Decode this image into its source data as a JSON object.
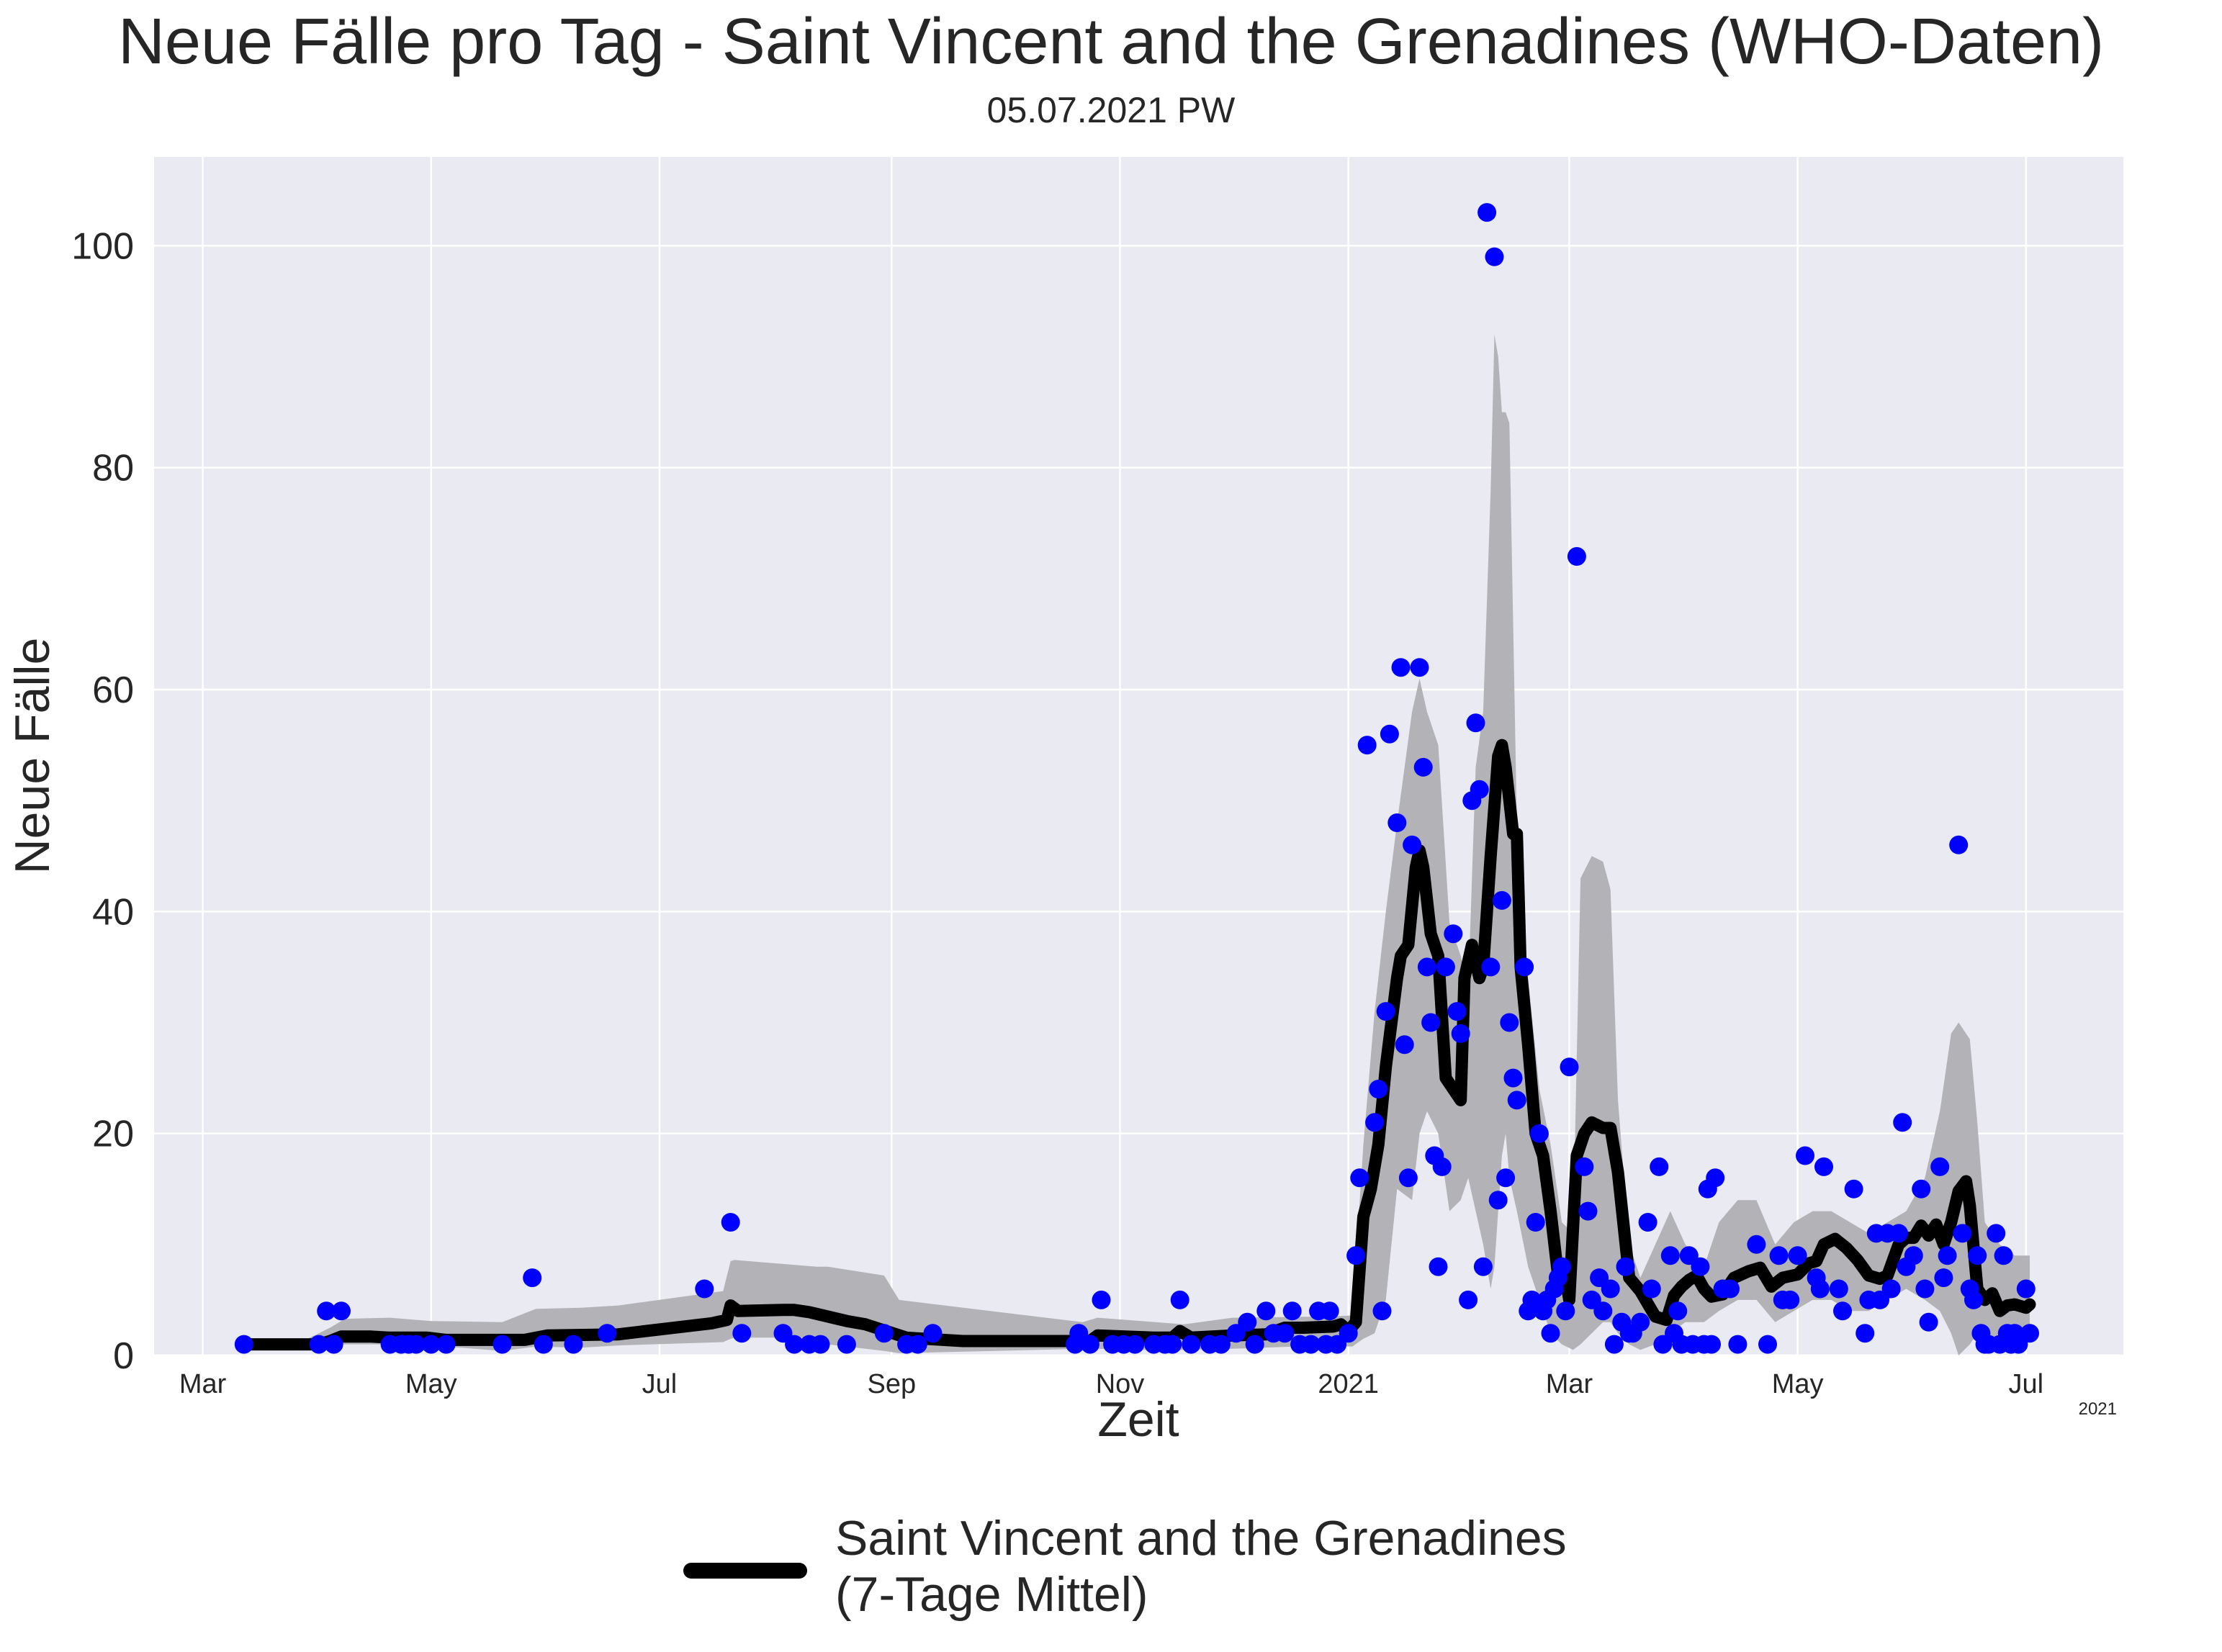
{
  "chart_data": {
    "type": "scatter",
    "title": "Neue Fälle pro Tag - Saint Vincent and the Grenadines (WHO-Daten)",
    "subtitle": "05.07.2021 PW",
    "xlabel": "Zeit",
    "ylabel": "Neue Fälle",
    "xlim": [
      "2020-02-17",
      "2021-07-27"
    ],
    "ylim": [
      0,
      108
    ],
    "grid": true,
    "x_ticks": [
      {
        "date": "2020-03-01",
        "label": "Mar"
      },
      {
        "date": "2020-05-01",
        "label": "May"
      },
      {
        "date": "2020-07-01",
        "label": "Jul"
      },
      {
        "date": "2020-09-01",
        "label": "Sep"
      },
      {
        "date": "2020-11-01",
        "label": "Nov"
      },
      {
        "date": "2021-01-01",
        "label": "2021"
      },
      {
        "date": "2021-03-01",
        "label": "Mar"
      },
      {
        "date": "2021-05-01",
        "label": "May"
      },
      {
        "date": "2021-07-01",
        "label": "Jul"
      }
    ],
    "x_offset_label": "2021",
    "y_ticks": [
      0,
      20,
      40,
      60,
      80,
      100
    ],
    "legend": {
      "position": "bottom-center",
      "label_line1": "Saint Vincent and the Grenadines",
      "label_line2": "(7-Tage Mittel)"
    },
    "colors": {
      "points": "#0000ff",
      "mean_line": "#000000",
      "band": "#b3b2b7",
      "plot_bg": "#eaeaf2",
      "grid": "#ffffff"
    },
    "daily_points": [
      [
        "2020-03-12",
        1
      ],
      [
        "2020-04-01",
        1
      ],
      [
        "2020-04-03",
        4
      ],
      [
        "2020-04-05",
        1
      ],
      [
        "2020-04-07",
        4
      ],
      [
        "2020-04-20",
        1
      ],
      [
        "2020-04-23",
        1
      ],
      [
        "2020-04-25",
        1
      ],
      [
        "2020-04-27",
        1
      ],
      [
        "2020-05-01",
        1
      ],
      [
        "2020-05-05",
        1
      ],
      [
        "2020-05-20",
        1
      ],
      [
        "2020-05-28",
        7
      ],
      [
        "2020-05-31",
        1
      ],
      [
        "2020-06-08",
        1
      ],
      [
        "2020-06-17",
        2
      ],
      [
        "2020-07-13",
        6
      ],
      [
        "2020-07-20",
        12
      ],
      [
        "2020-07-23",
        2
      ],
      [
        "2020-08-03",
        2
      ],
      [
        "2020-08-06",
        1
      ],
      [
        "2020-08-10",
        1
      ],
      [
        "2020-08-13",
        1
      ],
      [
        "2020-08-20",
        1
      ],
      [
        "2020-08-30",
        2
      ],
      [
        "2020-09-05",
        1
      ],
      [
        "2020-09-08",
        1
      ],
      [
        "2020-09-12",
        2
      ],
      [
        "2020-10-20",
        1
      ],
      [
        "2020-10-21",
        2
      ],
      [
        "2020-10-24",
        1
      ],
      [
        "2020-10-27",
        5
      ],
      [
        "2020-10-30",
        1
      ],
      [
        "2020-11-02",
        1
      ],
      [
        "2020-11-05",
        1
      ],
      [
        "2020-11-10",
        1
      ],
      [
        "2020-11-13",
        1
      ],
      [
        "2020-11-15",
        1
      ],
      [
        "2020-11-17",
        5
      ],
      [
        "2020-11-20",
        1
      ],
      [
        "2020-11-25",
        1
      ],
      [
        "2020-11-28",
        1
      ],
      [
        "2020-12-02",
        2
      ],
      [
        "2020-12-05",
        3
      ],
      [
        "2020-12-07",
        1
      ],
      [
        "2020-12-10",
        4
      ],
      [
        "2020-12-12",
        2
      ],
      [
        "2020-12-15",
        2
      ],
      [
        "2020-12-17",
        4
      ],
      [
        "2020-12-19",
        1
      ],
      [
        "2020-12-22",
        1
      ],
      [
        "2020-12-24",
        4
      ],
      [
        "2020-12-26",
        1
      ],
      [
        "2020-12-27",
        4
      ],
      [
        "2020-12-29",
        1
      ],
      [
        "2021-01-01",
        2
      ],
      [
        "2021-01-03",
        9
      ],
      [
        "2021-01-04",
        16
      ],
      [
        "2021-01-06",
        55
      ],
      [
        "2021-01-08",
        21
      ],
      [
        "2021-01-09",
        24
      ],
      [
        "2021-01-10",
        4
      ],
      [
        "2021-01-11",
        31
      ],
      [
        "2021-01-12",
        56
      ],
      [
        "2021-01-14",
        48
      ],
      [
        "2021-01-15",
        62
      ],
      [
        "2021-01-16",
        28
      ],
      [
        "2021-01-17",
        16
      ],
      [
        "2021-01-18",
        46
      ],
      [
        "2021-01-20",
        62
      ],
      [
        "2021-01-21",
        53
      ],
      [
        "2021-01-22",
        35
      ],
      [
        "2021-01-23",
        30
      ],
      [
        "2021-01-24",
        18
      ],
      [
        "2021-01-25",
        8
      ],
      [
        "2021-01-26",
        17
      ],
      [
        "2021-01-27",
        35
      ],
      [
        "2021-01-29",
        38
      ],
      [
        "2021-01-30",
        31
      ],
      [
        "2021-01-31",
        29
      ],
      [
        "2021-02-02",
        5
      ],
      [
        "2021-02-03",
        50
      ],
      [
        "2021-02-04",
        57
      ],
      [
        "2021-02-05",
        51
      ],
      [
        "2021-02-06",
        8
      ],
      [
        "2021-02-07",
        103
      ],
      [
        "2021-02-08",
        35
      ],
      [
        "2021-02-09",
        99
      ],
      [
        "2021-02-10",
        14
      ],
      [
        "2021-02-11",
        41
      ],
      [
        "2021-02-12",
        16
      ],
      [
        "2021-02-13",
        30
      ],
      [
        "2021-02-14",
        25
      ],
      [
        "2021-02-15",
        23
      ],
      [
        "2021-02-17",
        35
      ],
      [
        "2021-02-18",
        4
      ],
      [
        "2021-02-19",
        5
      ],
      [
        "2021-02-20",
        12
      ],
      [
        "2021-02-21",
        20
      ],
      [
        "2021-02-22",
        4
      ],
      [
        "2021-02-23",
        5
      ],
      [
        "2021-02-24",
        2
      ],
      [
        "2021-02-25",
        6
      ],
      [
        "2021-02-26",
        7
      ],
      [
        "2021-02-27",
        8
      ],
      [
        "2021-02-28",
        4
      ],
      [
        "2021-03-01",
        26
      ],
      [
        "2021-03-03",
        72
      ],
      [
        "2021-03-05",
        17
      ],
      [
        "2021-03-06",
        13
      ],
      [
        "2021-03-07",
        5
      ],
      [
        "2021-03-09",
        7
      ],
      [
        "2021-03-10",
        4
      ],
      [
        "2021-03-12",
        6
      ],
      [
        "2021-03-13",
        1
      ],
      [
        "2021-03-15",
        3
      ],
      [
        "2021-03-16",
        8
      ],
      [
        "2021-03-17",
        2
      ],
      [
        "2021-03-18",
        2
      ],
      [
        "2021-03-20",
        3
      ],
      [
        "2021-03-22",
        12
      ],
      [
        "2021-03-23",
        6
      ],
      [
        "2021-03-25",
        17
      ],
      [
        "2021-03-26",
        1
      ],
      [
        "2021-03-28",
        9
      ],
      [
        "2021-03-29",
        2
      ],
      [
        "2021-03-30",
        4
      ],
      [
        "2021-03-31",
        1
      ],
      [
        "2021-04-02",
        9
      ],
      [
        "2021-04-03",
        1
      ],
      [
        "2021-04-05",
        8
      ],
      [
        "2021-04-06",
        1
      ],
      [
        "2021-04-07",
        15
      ],
      [
        "2021-04-08",
        1
      ],
      [
        "2021-04-09",
        16
      ],
      [
        "2021-04-11",
        6
      ],
      [
        "2021-04-13",
        6
      ],
      [
        "2021-04-15",
        1
      ],
      [
        "2021-04-20",
        10
      ],
      [
        "2021-04-23",
        1
      ],
      [
        "2021-04-26",
        9
      ],
      [
        "2021-04-27",
        5
      ],
      [
        "2021-04-29",
        5
      ],
      [
        "2021-05-01",
        9
      ],
      [
        "2021-05-03",
        18
      ],
      [
        "2021-05-06",
        7
      ],
      [
        "2021-05-07",
        6
      ],
      [
        "2021-05-08",
        17
      ],
      [
        "2021-05-12",
        6
      ],
      [
        "2021-05-13",
        4
      ],
      [
        "2021-05-16",
        15
      ],
      [
        "2021-05-19",
        2
      ],
      [
        "2021-05-20",
        5
      ],
      [
        "2021-05-22",
        11
      ],
      [
        "2021-05-23",
        5
      ],
      [
        "2021-05-25",
        11
      ],
      [
        "2021-05-26",
        6
      ],
      [
        "2021-05-28",
        11
      ],
      [
        "2021-05-29",
        21
      ],
      [
        "2021-05-30",
        8
      ],
      [
        "2021-06-01",
        9
      ],
      [
        "2021-06-03",
        15
      ],
      [
        "2021-06-04",
        6
      ],
      [
        "2021-06-05",
        3
      ],
      [
        "2021-06-08",
        17
      ],
      [
        "2021-06-09",
        7
      ],
      [
        "2021-06-10",
        9
      ],
      [
        "2021-06-13",
        46
      ],
      [
        "2021-06-14",
        11
      ],
      [
        "2021-06-16",
        6
      ],
      [
        "2021-06-17",
        5
      ],
      [
        "2021-06-18",
        9
      ],
      [
        "2021-06-19",
        2
      ],
      [
        "2021-06-20",
        1
      ],
      [
        "2021-06-21",
        1
      ],
      [
        "2021-06-23",
        11
      ],
      [
        "2021-06-24",
        1
      ],
      [
        "2021-06-25",
        9
      ],
      [
        "2021-06-26",
        2
      ],
      [
        "2021-06-27",
        1
      ],
      [
        "2021-06-28",
        2
      ],
      [
        "2021-06-29",
        1
      ],
      [
        "2021-07-01",
        6
      ],
      [
        "2021-07-02",
        2
      ]
    ],
    "series": [
      {
        "name": "Saint Vincent and the Grenadines (7-Tage Mittel)",
        "x": [
          "2020-03-12",
          "2020-03-30",
          "2020-04-01",
          "2020-04-04",
          "2020-04-07",
          "2020-04-15",
          "2020-04-20",
          "2020-04-30",
          "2020-05-05",
          "2020-05-26",
          "2020-06-01",
          "2020-06-20",
          "2020-07-15",
          "2020-07-19",
          "2020-07-20",
          "2020-07-22",
          "2020-08-03",
          "2020-08-06",
          "2020-08-10",
          "2020-08-20",
          "2020-08-25",
          "2020-09-05",
          "2020-09-20",
          "2020-10-24",
          "2020-10-26",
          "2020-11-10",
          "2020-11-15",
          "2020-11-17",
          "2020-11-20",
          "2020-12-01",
          "2020-12-10",
          "2020-12-15",
          "2020-12-20",
          "2020-12-28",
          "2020-12-30",
          "2021-01-01",
          "2021-01-03",
          "2021-01-05",
          "2021-01-07",
          "2021-01-09",
          "2021-01-11",
          "2021-01-14",
          "2021-01-15",
          "2021-01-17",
          "2021-01-19",
          "2021-01-20",
          "2021-01-21",
          "2021-01-23",
          "2021-01-25",
          "2021-01-27",
          "2021-01-29",
          "2021-01-31",
          "2021-02-01",
          "2021-02-03",
          "2021-02-05",
          "2021-02-06",
          "2021-02-08",
          "2021-02-10",
          "2021-02-11",
          "2021-02-12",
          "2021-02-14",
          "2021-02-15",
          "2021-02-16",
          "2021-02-18",
          "2021-02-20",
          "2021-02-22",
          "2021-02-24",
          "2021-02-26",
          "2021-02-28",
          "2021-03-01",
          "2021-03-03",
          "2021-03-05",
          "2021-03-07",
          "2021-03-10",
          "2021-03-12",
          "2021-03-14",
          "2021-03-17",
          "2021-03-20",
          "2021-03-24",
          "2021-03-27",
          "2021-03-29",
          "2021-03-31",
          "2021-04-02",
          "2021-04-04",
          "2021-04-06",
          "2021-04-08",
          "2021-04-11",
          "2021-04-14",
          "2021-04-18",
          "2021-04-21",
          "2021-04-24",
          "2021-04-27",
          "2021-05-01",
          "2021-05-04",
          "2021-05-06",
          "2021-05-08",
          "2021-05-11",
          "2021-05-14",
          "2021-05-17",
          "2021-05-20",
          "2021-05-23",
          "2021-05-25",
          "2021-05-28",
          "2021-05-30",
          "2021-06-01",
          "2021-06-03",
          "2021-06-05",
          "2021-06-07",
          "2021-06-09",
          "2021-06-11",
          "2021-06-13",
          "2021-06-15",
          "2021-06-16",
          "2021-06-18",
          "2021-06-20",
          "2021-06-22",
          "2021-06-24",
          "2021-06-26",
          "2021-06-28",
          "2021-07-01",
          "2021-07-02"
        ],
        "values": [
          1,
          1,
          1,
          1.3,
          1.7,
          1.7,
          1.6,
          1.6,
          1.4,
          1.4,
          1.8,
          1.9,
          2.9,
          3.2,
          4.5,
          4.0,
          4.1,
          4.1,
          3.9,
          3.1,
          2.8,
          1.6,
          1.3,
          1.3,
          1.8,
          1.6,
          1.6,
          2.2,
          1.6,
          1.8,
          1.9,
          2.5,
          2.5,
          2.6,
          2.8,
          2.2,
          3.0,
          12.5,
          15,
          19,
          26,
          34,
          36,
          37,
          44,
          45.5,
          44,
          38,
          36,
          25,
          24,
          23,
          34,
          37,
          34,
          35,
          45,
          54,
          55,
          53,
          47,
          47,
          35,
          28,
          20,
          18,
          13,
          7.2,
          7.0,
          5.0,
          18,
          20,
          21,
          20.5,
          20.5,
          16.5,
          7,
          5.8,
          3.5,
          3.2,
          5.4,
          6.2,
          6.8,
          7.2,
          6,
          5.3,
          5.5,
          7.0,
          7.6,
          7.9,
          6.2,
          7.0,
          7.3,
          8.3,
          8.5,
          10,
          10.5,
          9.7,
          8.6,
          7.2,
          6.9,
          7.2,
          10,
          10.6,
          10.6,
          11.7,
          10.8,
          11.8,
          10,
          12,
          14.8,
          15.7,
          13.5,
          6.0,
          5.0,
          5.6,
          4.0,
          4.5,
          4.6,
          4.3,
          4.6
        ]
      }
    ],
    "band": {
      "x": [
        "2020-03-29",
        "2020-04-04",
        "2020-04-08",
        "2020-04-20",
        "2020-05-01",
        "2020-05-20",
        "2020-05-29",
        "2020-06-10",
        "2020-06-20",
        "2020-07-18",
        "2020-07-20",
        "2020-07-21",
        "2020-08-12",
        "2020-08-15",
        "2020-08-30",
        "2020-09-03",
        "2020-10-22",
        "2020-10-26",
        "2020-11-03",
        "2020-11-18",
        "2020-12-01",
        "2020-12-26",
        "2021-01-02",
        "2021-01-05",
        "2021-01-08",
        "2021-01-11",
        "2021-01-14",
        "2021-01-18",
        "2021-01-20",
        "2021-01-22",
        "2021-01-25",
        "2021-01-28",
        "2021-01-31",
        "2021-02-02",
        "2021-02-04",
        "2021-02-06",
        "2021-02-08",
        "2021-02-09",
        "2021-02-10",
        "2021-02-11",
        "2021-02-12",
        "2021-02-13",
        "2021-02-15",
        "2021-02-18",
        "2021-02-21",
        "2021-02-24",
        "2021-02-27",
        "2021-03-02",
        "2021-03-04",
        "2021-03-07",
        "2021-03-10",
        "2021-03-12",
        "2021-03-14",
        "2021-03-17",
        "2021-03-20",
        "2021-03-24",
        "2021-03-28",
        "2021-04-01",
        "2021-04-06",
        "2021-04-10",
        "2021-04-15",
        "2021-04-20",
        "2021-04-25",
        "2021-04-30",
        "2021-05-05",
        "2021-05-10",
        "2021-05-15",
        "2021-05-20",
        "2021-05-25",
        "2021-05-30",
        "2021-06-04",
        "2021-06-08",
        "2021-06-11",
        "2021-06-13",
        "2021-06-16",
        "2021-06-18",
        "2021-06-20",
        "2021-06-24",
        "2021-06-28",
        "2021-07-02"
      ],
      "upper": [
        1.5,
        2.5,
        3.3,
        3.4,
        3.1,
        3.0,
        4.2,
        4.3,
        4.5,
        5.8,
        8.5,
        8.6,
        8.0,
        8.0,
        7.2,
        5,
        3.0,
        3.4,
        3.2,
        2.8,
        3.4,
        3.5,
        3.6,
        19,
        31,
        40,
        48,
        58,
        61,
        58,
        55,
        39,
        36,
        33,
        53,
        58,
        78,
        92,
        90,
        85,
        85,
        84,
        48,
        34,
        24,
        19,
        12,
        11,
        43,
        45,
        44.5,
        42,
        23,
        10,
        7,
        10,
        13,
        10,
        8,
        12,
        14,
        14,
        10,
        12,
        13,
        13,
        12,
        11,
        12,
        13,
        16,
        22,
        29,
        30,
        28.5,
        21,
        12,
        10,
        9,
        9
      ],
      "lower": [
        0.8,
        0.9,
        1.0,
        1.0,
        0.9,
        0.4,
        0.8,
        0.7,
        0.9,
        1.2,
        1.5,
        1.6,
        1.6,
        1.0,
        0.4,
        0.2,
        0.6,
        0.6,
        0.5,
        0.5,
        0.6,
        0.9,
        0.8,
        1.5,
        2,
        5,
        15,
        14,
        20,
        22,
        20,
        13,
        14,
        16,
        13,
        10,
        6,
        8,
        13,
        18,
        20,
        16,
        13,
        8,
        5,
        2,
        1,
        0.5,
        1,
        2,
        3,
        3,
        2,
        1,
        0.5,
        1,
        2,
        3,
        3,
        4,
        5,
        5,
        3,
        4,
        5,
        5,
        4,
        4,
        5,
        6,
        5,
        4,
        2,
        0,
        1,
        2,
        1,
        2,
        2,
        2
      ]
    }
  }
}
